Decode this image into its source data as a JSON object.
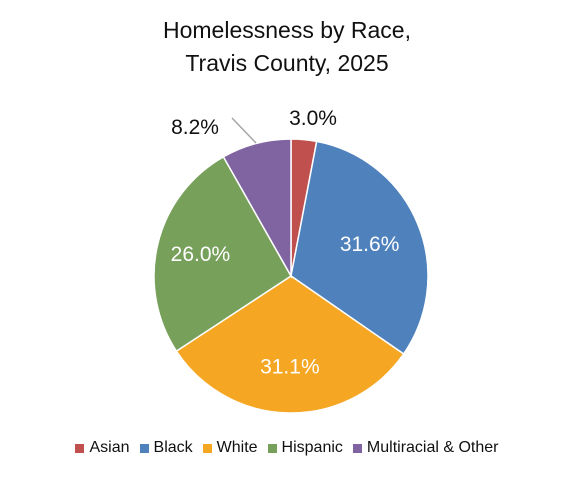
{
  "chart_data": {
    "type": "pie",
    "title_lines": [
      "Homelessness by Race,",
      "Travis County, 2025"
    ],
    "categories": [
      "Asian",
      "Black",
      "White",
      "Hispanic",
      "Multiracial & Other"
    ],
    "values": [
      3.0,
      31.6,
      31.1,
      26.0,
      8.2
    ],
    "data_labels": [
      "3.0%",
      "31.6%",
      "31.1%",
      "26.0%",
      "8.2%"
    ],
    "colors": [
      "#c0504d",
      "#4f81bd",
      "#f5a623",
      "#77a05b",
      "#8064a2"
    ],
    "label_colors": [
      "#111111",
      "#ffffff",
      "#ffffff",
      "#ffffff",
      "#111111"
    ],
    "legend_position": "bottom"
  }
}
